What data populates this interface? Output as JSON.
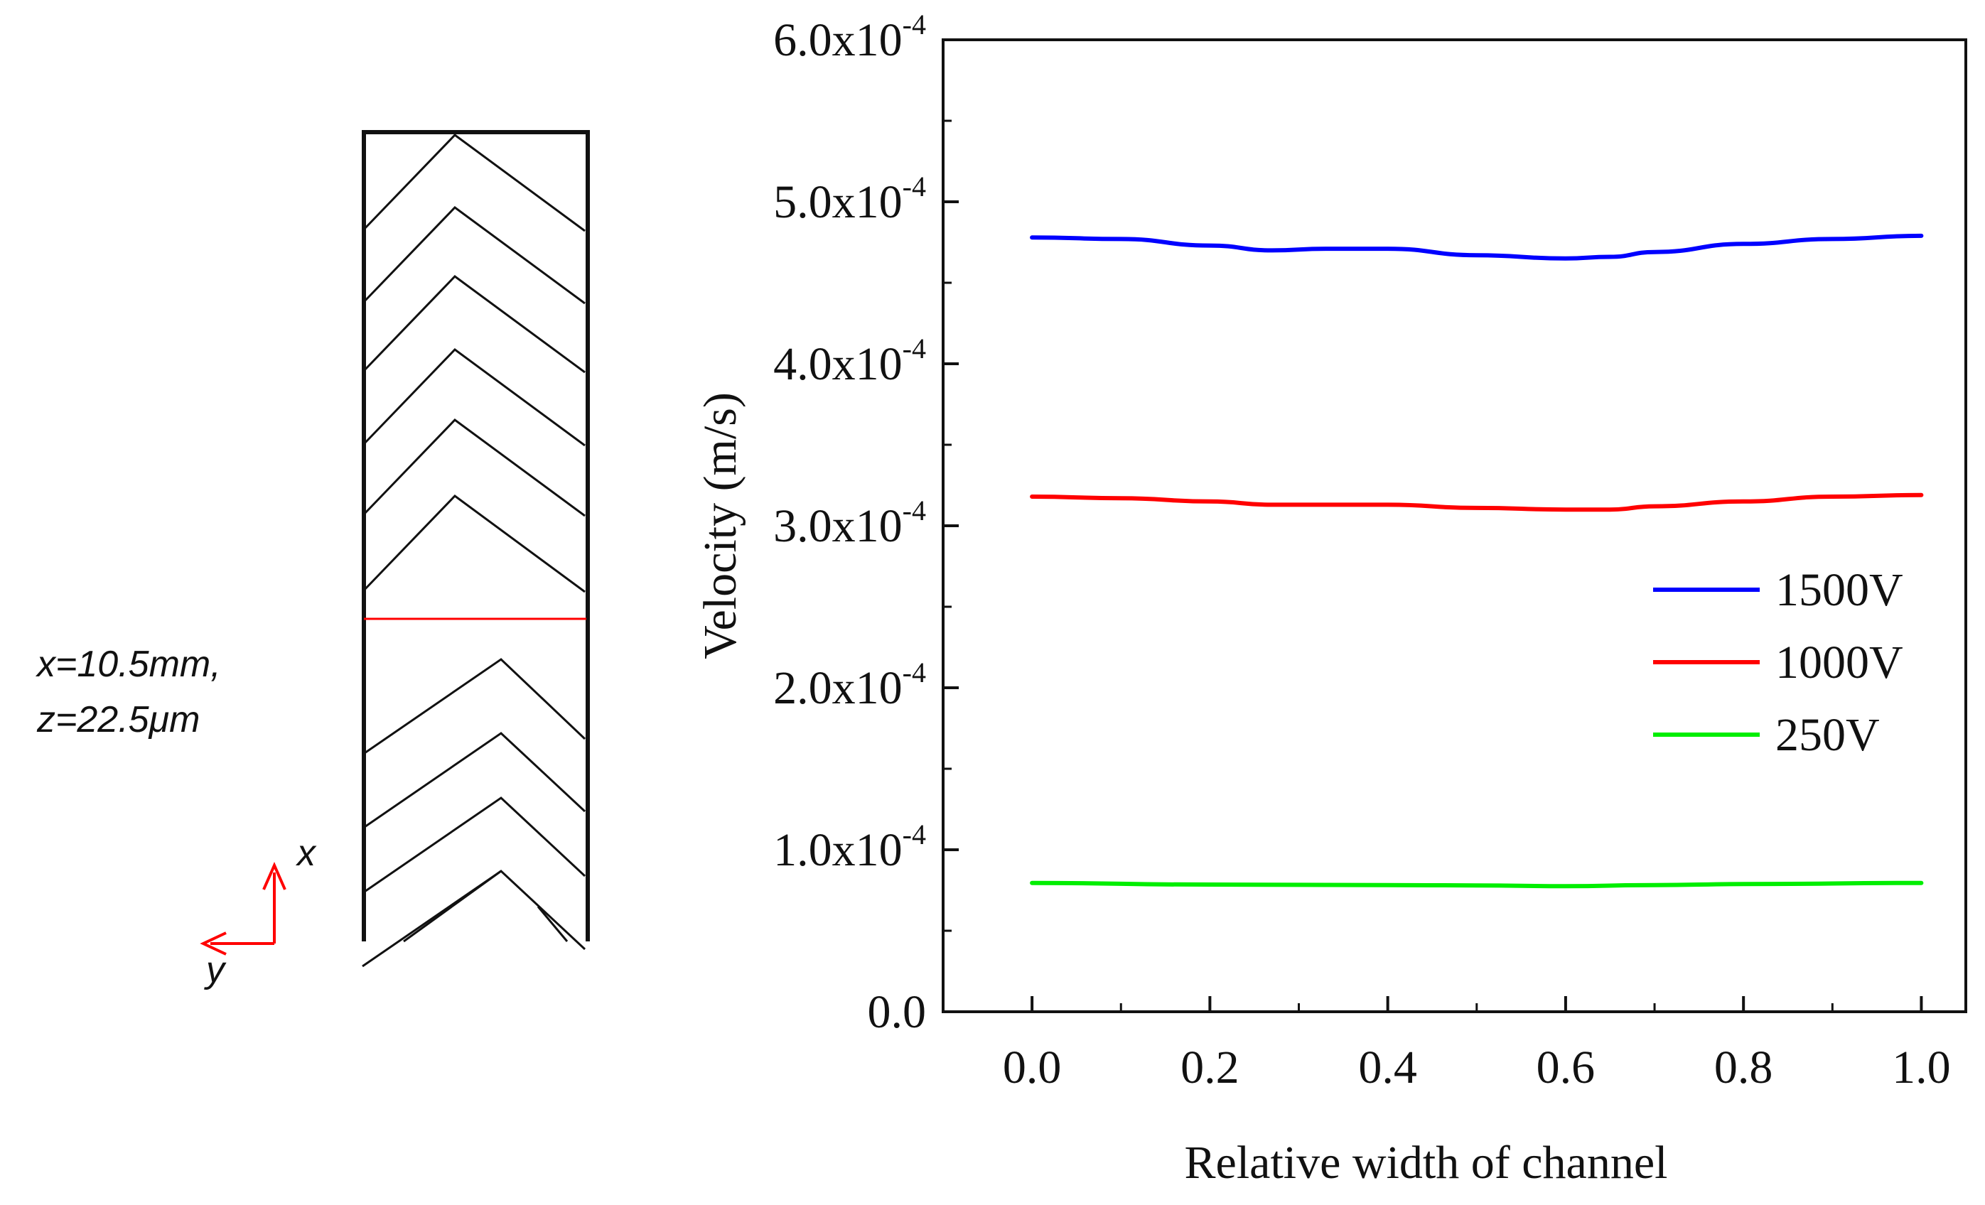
{
  "annotation": {
    "line1": "x=10.5mm,",
    "line2": "z=22.5μm",
    "axis_x": "x",
    "axis_y": "y"
  },
  "chart_data": {
    "type": "line",
    "title": "",
    "xlabel": "Relative width of channel",
    "ylabel": "Velocity (m/s)",
    "xlim": [
      -0.1,
      1.05
    ],
    "ylim": [
      0,
      0.0006
    ],
    "x_ticks": [
      0.0,
      0.2,
      0.4,
      0.6,
      0.8,
      1.0
    ],
    "x_tick_labels": [
      "0.0",
      "0.2",
      "0.4",
      "0.6",
      "0.8",
      "1.0"
    ],
    "y_ticks": [
      0,
      0.0001,
      0.0002,
      0.0003,
      0.0004,
      0.0005,
      0.0006
    ],
    "y_tick_labels": [
      {
        "mantissa": "0.0",
        "exponent": ""
      },
      {
        "mantissa": "1.0x10",
        "exponent": "-4"
      },
      {
        "mantissa": "2.0x10",
        "exponent": "-4"
      },
      {
        "mantissa": "3.0x10",
        "exponent": "-4"
      },
      {
        "mantissa": "4.0x10",
        "exponent": "-4"
      },
      {
        "mantissa": "5.0x10",
        "exponent": "-4"
      },
      {
        "mantissa": "6.0x10",
        "exponent": "-4"
      }
    ],
    "legend_position": "right-middle",
    "series": [
      {
        "name": "1500V",
        "color": "#0000ff",
        "x": [
          0.0,
          0.1,
          0.2,
          0.27,
          0.33,
          0.4,
          0.5,
          0.6,
          0.65,
          0.7,
          0.8,
          0.9,
          1.0
        ],
        "values": [
          0.000478,
          0.000477,
          0.000473,
          0.00047,
          0.000471,
          0.000471,
          0.000467,
          0.000465,
          0.000466,
          0.000469,
          0.000474,
          0.000477,
          0.000479
        ]
      },
      {
        "name": "1000V",
        "color": "#ff0000",
        "x": [
          0.0,
          0.1,
          0.2,
          0.27,
          0.33,
          0.4,
          0.5,
          0.6,
          0.65,
          0.7,
          0.8,
          0.9,
          1.0
        ],
        "values": [
          0.000318,
          0.000317,
          0.000315,
          0.000313,
          0.000313,
          0.000313,
          0.000311,
          0.00031,
          0.00031,
          0.000312,
          0.000315,
          0.000318,
          0.000319
        ]
      },
      {
        "name": "250V",
        "color": "#00ee00",
        "x": [
          0.0,
          0.2,
          0.4,
          0.5,
          0.6,
          0.7,
          0.8,
          1.0
        ],
        "values": [
          7.95e-05,
          7.85e-05,
          7.82e-05,
          7.8e-05,
          7.75e-05,
          7.82e-05,
          7.88e-05,
          7.95e-05
        ]
      }
    ]
  }
}
